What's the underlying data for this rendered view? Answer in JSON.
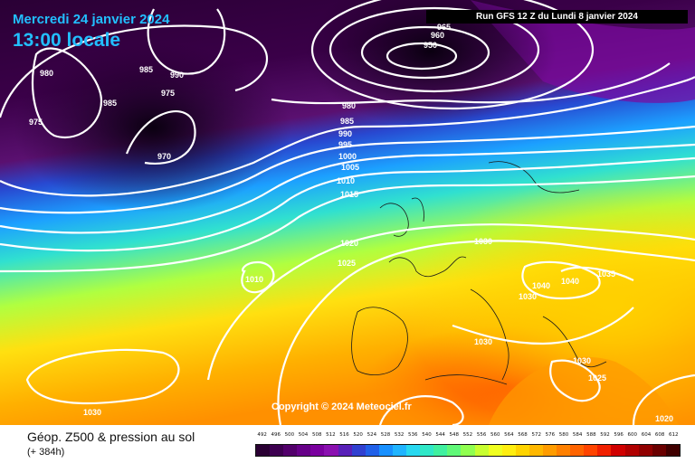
{
  "header": {
    "date": "Mercredi 24 janvier 2024",
    "hour": "13:00 locale",
    "run": "Run GFS 12 Z du Lundi 8 janvier 2024",
    "copyright": "Copyright © 2024 Meteociel.fr"
  },
  "footer": {
    "title": "Géop. Z500 & pression au sol",
    "subtitle": "(+ 384h)"
  },
  "legend": {
    "labels": [
      "492",
      "496",
      "500",
      "504",
      "508",
      "512",
      "516",
      "520",
      "524",
      "528",
      "532",
      "536",
      "540",
      "544",
      "548",
      "552",
      "556",
      "560",
      "564",
      "568",
      "572",
      "576",
      "580",
      "584",
      "588",
      "592",
      "596",
      "600",
      "604",
      "608",
      "612"
    ],
    "colors": [
      "#2a0033",
      "#3d0050",
      "#52006b",
      "#660088",
      "#7a009f",
      "#8a10b0",
      "#5820b8",
      "#3040d0",
      "#2060e8",
      "#1890ff",
      "#20b4ff",
      "#28d8f0",
      "#30e8c8",
      "#40f0a0",
      "#60f878",
      "#90ff50",
      "#c8ff30",
      "#f0ff20",
      "#ffee10",
      "#ffd400",
      "#ffb800",
      "#ff9c00",
      "#ff8000",
      "#ff6400",
      "#ff4400",
      "#f02000",
      "#d00000",
      "#b00000",
      "#900000",
      "#6a0000",
      "#400000"
    ]
  },
  "isobars": [
    "950",
    "955",
    "960",
    "965",
    "970",
    "975",
    "975",
    "980",
    "980",
    "985",
    "985",
    "985",
    "990",
    "990",
    "990",
    "990",
    "995",
    "995",
    "1000",
    "1005",
    "1010",
    "1010",
    "1015",
    "1020",
    "1025",
    "1030",
    "1030",
    "1030",
    "1030",
    "1035",
    "1040",
    "1040",
    "1030",
    "1025",
    "1020"
  ]
}
